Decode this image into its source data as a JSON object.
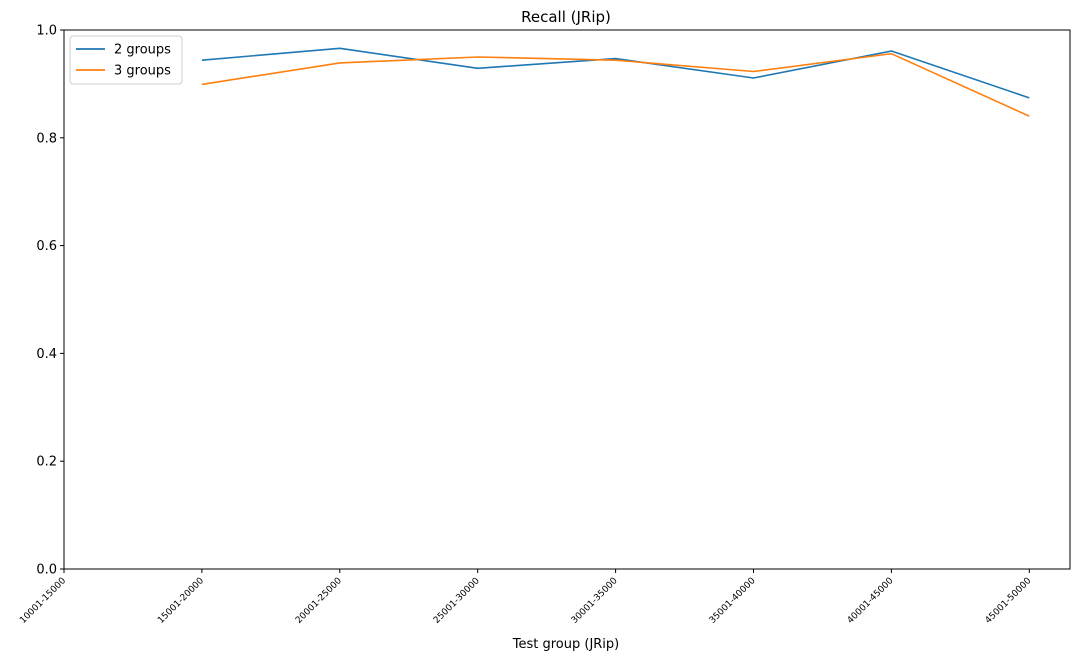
{
  "chart_data": {
    "type": "line",
    "title": "Recall (JRip)",
    "xlabel": "Test group (JRip)",
    "ylabel": "",
    "ylim": [
      0,
      1.0
    ],
    "yticks": [
      "0.0",
      "0.2",
      "0.4",
      "0.6",
      "0.8",
      "1.0"
    ],
    "categories": [
      "10001-15000",
      "15001-20000",
      "20001-25000",
      "25001-30000",
      "30001-35000",
      "35001-40000",
      "40001-45000",
      "45001-50000"
    ],
    "series": [
      {
        "name": "2 groups",
        "color": "#1f77b4",
        "values": [
          null,
          0.944,
          0.966,
          0.929,
          0.947,
          0.911,
          0.961,
          0.874
        ]
      },
      {
        "name": "3 groups",
        "color": "#ff7f0e",
        "values": [
          null,
          0.899,
          0.939,
          0.95,
          0.944,
          0.923,
          0.956,
          0.84
        ]
      }
    ],
    "legend_position": "top-left",
    "grid": false
  }
}
